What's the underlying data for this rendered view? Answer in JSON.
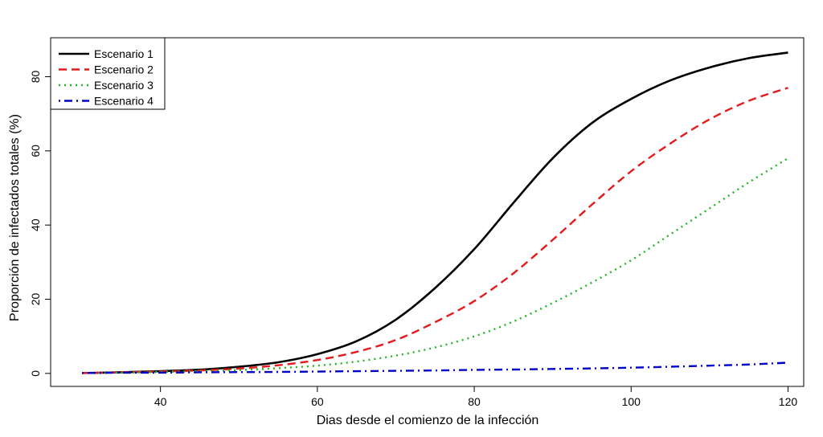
{
  "chart_data": {
    "type": "line",
    "title": "",
    "xlabel": "Dias desde el comienzo de la infección",
    "ylabel": "Proporción de infectados totales (%)",
    "xlim": [
      26,
      122
    ],
    "ylim": [
      -3.5,
      90.5
    ],
    "xticks": [
      40,
      60,
      80,
      100,
      120
    ],
    "yticks": [
      0,
      20,
      40,
      60,
      80
    ],
    "grid": false,
    "legend_position": "top-left",
    "x": [
      30,
      35,
      40,
      45,
      50,
      55,
      60,
      65,
      70,
      75,
      80,
      85,
      90,
      95,
      100,
      105,
      110,
      115,
      120
    ],
    "series": [
      {
        "name": "Escenario 1",
        "color": "#000000",
        "dash": "solid",
        "values": [
          0.1,
          0.3,
          0.6,
          1.0,
          1.8,
          3.0,
          5.2,
          8.7,
          14.5,
          23.0,
          33.5,
          46.0,
          58.0,
          67.5,
          74.0,
          79.0,
          82.5,
          85.0,
          86.5
        ]
      },
      {
        "name": "Escenario 2",
        "color": "#e41a1c",
        "dash": "dashed",
        "values": [
          0.1,
          0.3,
          0.5,
          0.8,
          1.3,
          2.2,
          3.6,
          5.8,
          9.0,
          13.8,
          19.5,
          27.0,
          36.0,
          45.5,
          54.5,
          62.0,
          68.5,
          73.5,
          77.0
        ]
      },
      {
        "name": "Escenario 3",
        "color": "#22b422",
        "dash": "dotted",
        "values": [
          0.1,
          0.2,
          0.4,
          0.6,
          0.9,
          1.4,
          2.1,
          3.2,
          4.8,
          7.0,
          10.0,
          14.0,
          19.0,
          24.5,
          30.5,
          37.5,
          44.5,
          51.5,
          58.0
        ]
      },
      {
        "name": "Escenario 4",
        "color": "#0000cc",
        "dash": "dotdash",
        "values": [
          0.1,
          0.2,
          0.2,
          0.3,
          0.35,
          0.4,
          0.5,
          0.6,
          0.7,
          0.8,
          0.95,
          1.05,
          1.2,
          1.35,
          1.55,
          1.8,
          2.1,
          2.4,
          2.9
        ]
      }
    ]
  }
}
